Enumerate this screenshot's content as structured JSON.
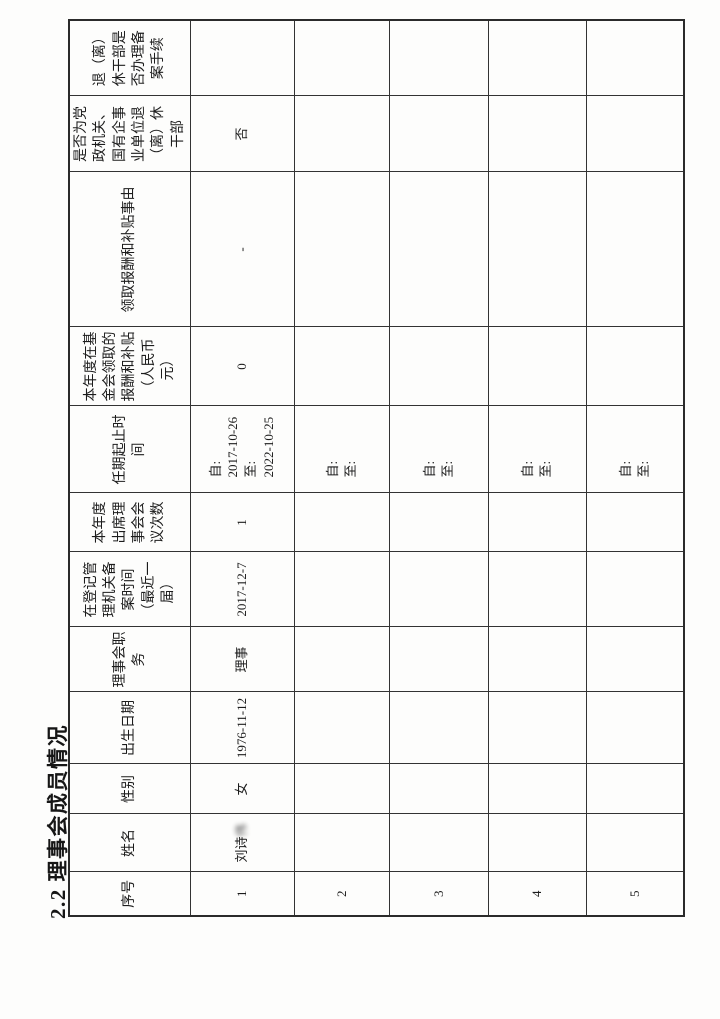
{
  "document": {
    "section_title": "2.2 理事会成员情况"
  },
  "table": {
    "headers": [
      "序号",
      "姓名",
      "性别",
      "出生日期",
      "理事会职务",
      "在登记管理机关备案时间（最近一届）",
      "本年度出席理事会会议次数",
      "任期起止时间",
      "本年度在基金会领取的报酬和补贴（人民币元）",
      "领取报酬和补贴事由",
      "是否为党政机关、国有企事业单位退（离）休干部",
      "退（离）休干部是否办理备案手续"
    ],
    "rows": [
      {
        "cells": [
          "1",
          "刘诗",
          "女",
          "1976-11-12",
          "理事",
          "2017-12-7",
          "1",
          "自:\n2017-10-26\n至:\n2022-10-25",
          "0",
          "-",
          "否",
          ""
        ],
        "name_blurred_suffix": "伟"
      },
      {
        "cells": [
          "2",
          "",
          "",
          "",
          "",
          "",
          "",
          "自:\n至:",
          "",
          "",
          "",
          ""
        ]
      },
      {
        "cells": [
          "3",
          "",
          "",
          "",
          "",
          "",
          "",
          "自:\n至:",
          "",
          "",
          "",
          ""
        ]
      },
      {
        "cells": [
          "4",
          "",
          "",
          "",
          "",
          "",
          "",
          "自:\n至:",
          "",
          "",
          "",
          ""
        ]
      },
      {
        "cells": [
          "5",
          "",
          "",
          "",
          "",
          "",
          "",
          "自:\n至:",
          "",
          "",
          "",
          ""
        ]
      }
    ]
  }
}
